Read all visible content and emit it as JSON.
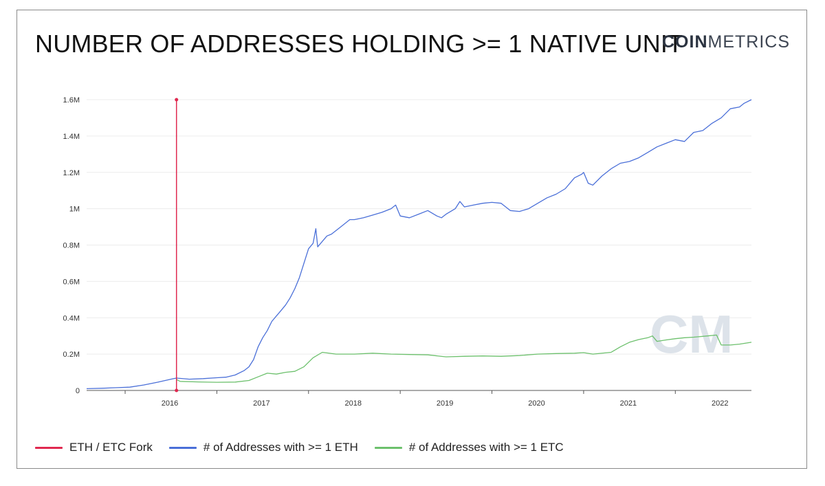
{
  "header": {
    "title": "NUMBER OF ADDRESSES HOLDING >= 1 NATIVE UNIT",
    "logo_bold": "COIN",
    "logo_light": "METRICS"
  },
  "watermark": "CM",
  "chart_data": {
    "type": "line",
    "title": "NUMBER OF ADDRESSES HOLDING >= 1 NATIVE UNIT",
    "xlabel": "",
    "ylabel": "",
    "xlim": [
      2015.58,
      2022.83
    ],
    "ylim": [
      0,
      1600000
    ],
    "grid": true,
    "legend_position": "bottom-left",
    "x_ticks": [
      {
        "value": 2016.0,
        "label": "2016"
      },
      {
        "value": 2017.0,
        "label": "2017"
      },
      {
        "value": 2018.0,
        "label": "2018"
      },
      {
        "value": 2019.0,
        "label": "2019"
      },
      {
        "value": 2020.0,
        "label": "2020"
      },
      {
        "value": 2021.0,
        "label": "2021"
      },
      {
        "value": 2022.0,
        "label": "2022"
      }
    ],
    "y_ticks": [
      {
        "value": 0,
        "label": "0"
      },
      {
        "value": 200000,
        "label": "0.2M"
      },
      {
        "value": 400000,
        "label": "0.4M"
      },
      {
        "value": 600000,
        "label": "0.6M"
      },
      {
        "value": 800000,
        "label": "0.8M"
      },
      {
        "value": 1000000,
        "label": "1M"
      },
      {
        "value": 1200000,
        "label": "1.2M"
      },
      {
        "value": 1400000,
        "label": "1.4M"
      },
      {
        "value": 1600000,
        "label": "1.6M"
      }
    ],
    "event_marker": {
      "name": "ETH / ETC Fork",
      "x": 2016.56,
      "color": "#e0284f"
    },
    "series": [
      {
        "name": "# of Addresses with >= 1 ETH",
        "color": "#4a6fd8",
        "x": [
          2015.58,
          2015.75,
          2015.9,
          2016.05,
          2016.2,
          2016.35,
          2016.5,
          2016.56,
          2016.7,
          2016.85,
          2017.0,
          2017.1,
          2017.2,
          2017.3,
          2017.35,
          2017.4,
          2017.45,
          2017.5,
          2017.55,
          2017.6,
          2017.65,
          2017.7,
          2017.75,
          2017.8,
          2017.85,
          2017.9,
          2017.95,
          2018.0,
          2018.05,
          2018.08,
          2018.1,
          2018.15,
          2018.2,
          2018.25,
          2018.35,
          2018.45,
          2018.5,
          2018.6,
          2018.7,
          2018.8,
          2018.9,
          2018.95,
          2019.0,
          2019.1,
          2019.2,
          2019.3,
          2019.4,
          2019.45,
          2019.5,
          2019.6,
          2019.65,
          2019.7,
          2019.8,
          2019.9,
          2020.0,
          2020.1,
          2020.2,
          2020.3,
          2020.4,
          2020.5,
          2020.6,
          2020.7,
          2020.8,
          2020.9,
          2020.98,
          2021.0,
          2021.05,
          2021.1,
          2021.2,
          2021.3,
          2021.4,
          2021.5,
          2021.6,
          2021.7,
          2021.8,
          2021.9,
          2022.0,
          2022.1,
          2022.2,
          2022.3,
          2022.4,
          2022.5,
          2022.6,
          2022.7,
          2022.75,
          2022.83
        ],
        "values": [
          10000,
          12000,
          15000,
          18000,
          30000,
          45000,
          62000,
          68000,
          62000,
          65000,
          70000,
          73000,
          85000,
          110000,
          130000,
          170000,
          240000,
          290000,
          330000,
          380000,
          410000,
          440000,
          470000,
          510000,
          560000,
          620000,
          700000,
          780000,
          810000,
          890000,
          790000,
          820000,
          850000,
          860000,
          900000,
          940000,
          940000,
          950000,
          965000,
          980000,
          1000000,
          1020000,
          960000,
          950000,
          970000,
          990000,
          960000,
          950000,
          970000,
          1000000,
          1040000,
          1010000,
          1020000,
          1030000,
          1035000,
          1030000,
          990000,
          985000,
          1000000,
          1030000,
          1060000,
          1080000,
          1110000,
          1170000,
          1190000,
          1200000,
          1140000,
          1130000,
          1180000,
          1220000,
          1250000,
          1260000,
          1280000,
          1310000,
          1340000,
          1360000,
          1380000,
          1370000,
          1420000,
          1430000,
          1470000,
          1500000,
          1550000,
          1560000,
          1580000,
          1600000
        ]
      },
      {
        "name": "# of Addresses with >= 1 ETC",
        "color": "#6cc06c",
        "x": [
          2016.56,
          2016.6,
          2016.8,
          2017.0,
          2017.2,
          2017.35,
          2017.45,
          2017.55,
          2017.65,
          2017.75,
          2017.85,
          2017.95,
          2018.05,
          2018.15,
          2018.3,
          2018.5,
          2018.7,
          2018.9,
          2019.1,
          2019.3,
          2019.5,
          2019.7,
          2019.9,
          2020.1,
          2020.3,
          2020.5,
          2020.7,
          2020.9,
          2021.0,
          2021.1,
          2021.3,
          2021.4,
          2021.5,
          2021.6,
          2021.7,
          2021.75,
          2021.8,
          2021.9,
          2022.0,
          2022.1,
          2022.2,
          2022.35,
          2022.45,
          2022.5,
          2022.6,
          2022.7,
          2022.83
        ],
        "values": [
          60000,
          50000,
          47000,
          45000,
          46000,
          55000,
          75000,
          95000,
          90000,
          100000,
          105000,
          130000,
          180000,
          210000,
          200000,
          200000,
          205000,
          200000,
          198000,
          196000,
          185000,
          188000,
          190000,
          188000,
          192000,
          200000,
          203000,
          205000,
          208000,
          200000,
          210000,
          240000,
          265000,
          280000,
          290000,
          300000,
          270000,
          278000,
          285000,
          290000,
          293000,
          300000,
          305000,
          250000,
          250000,
          255000,
          265000
        ]
      }
    ]
  }
}
